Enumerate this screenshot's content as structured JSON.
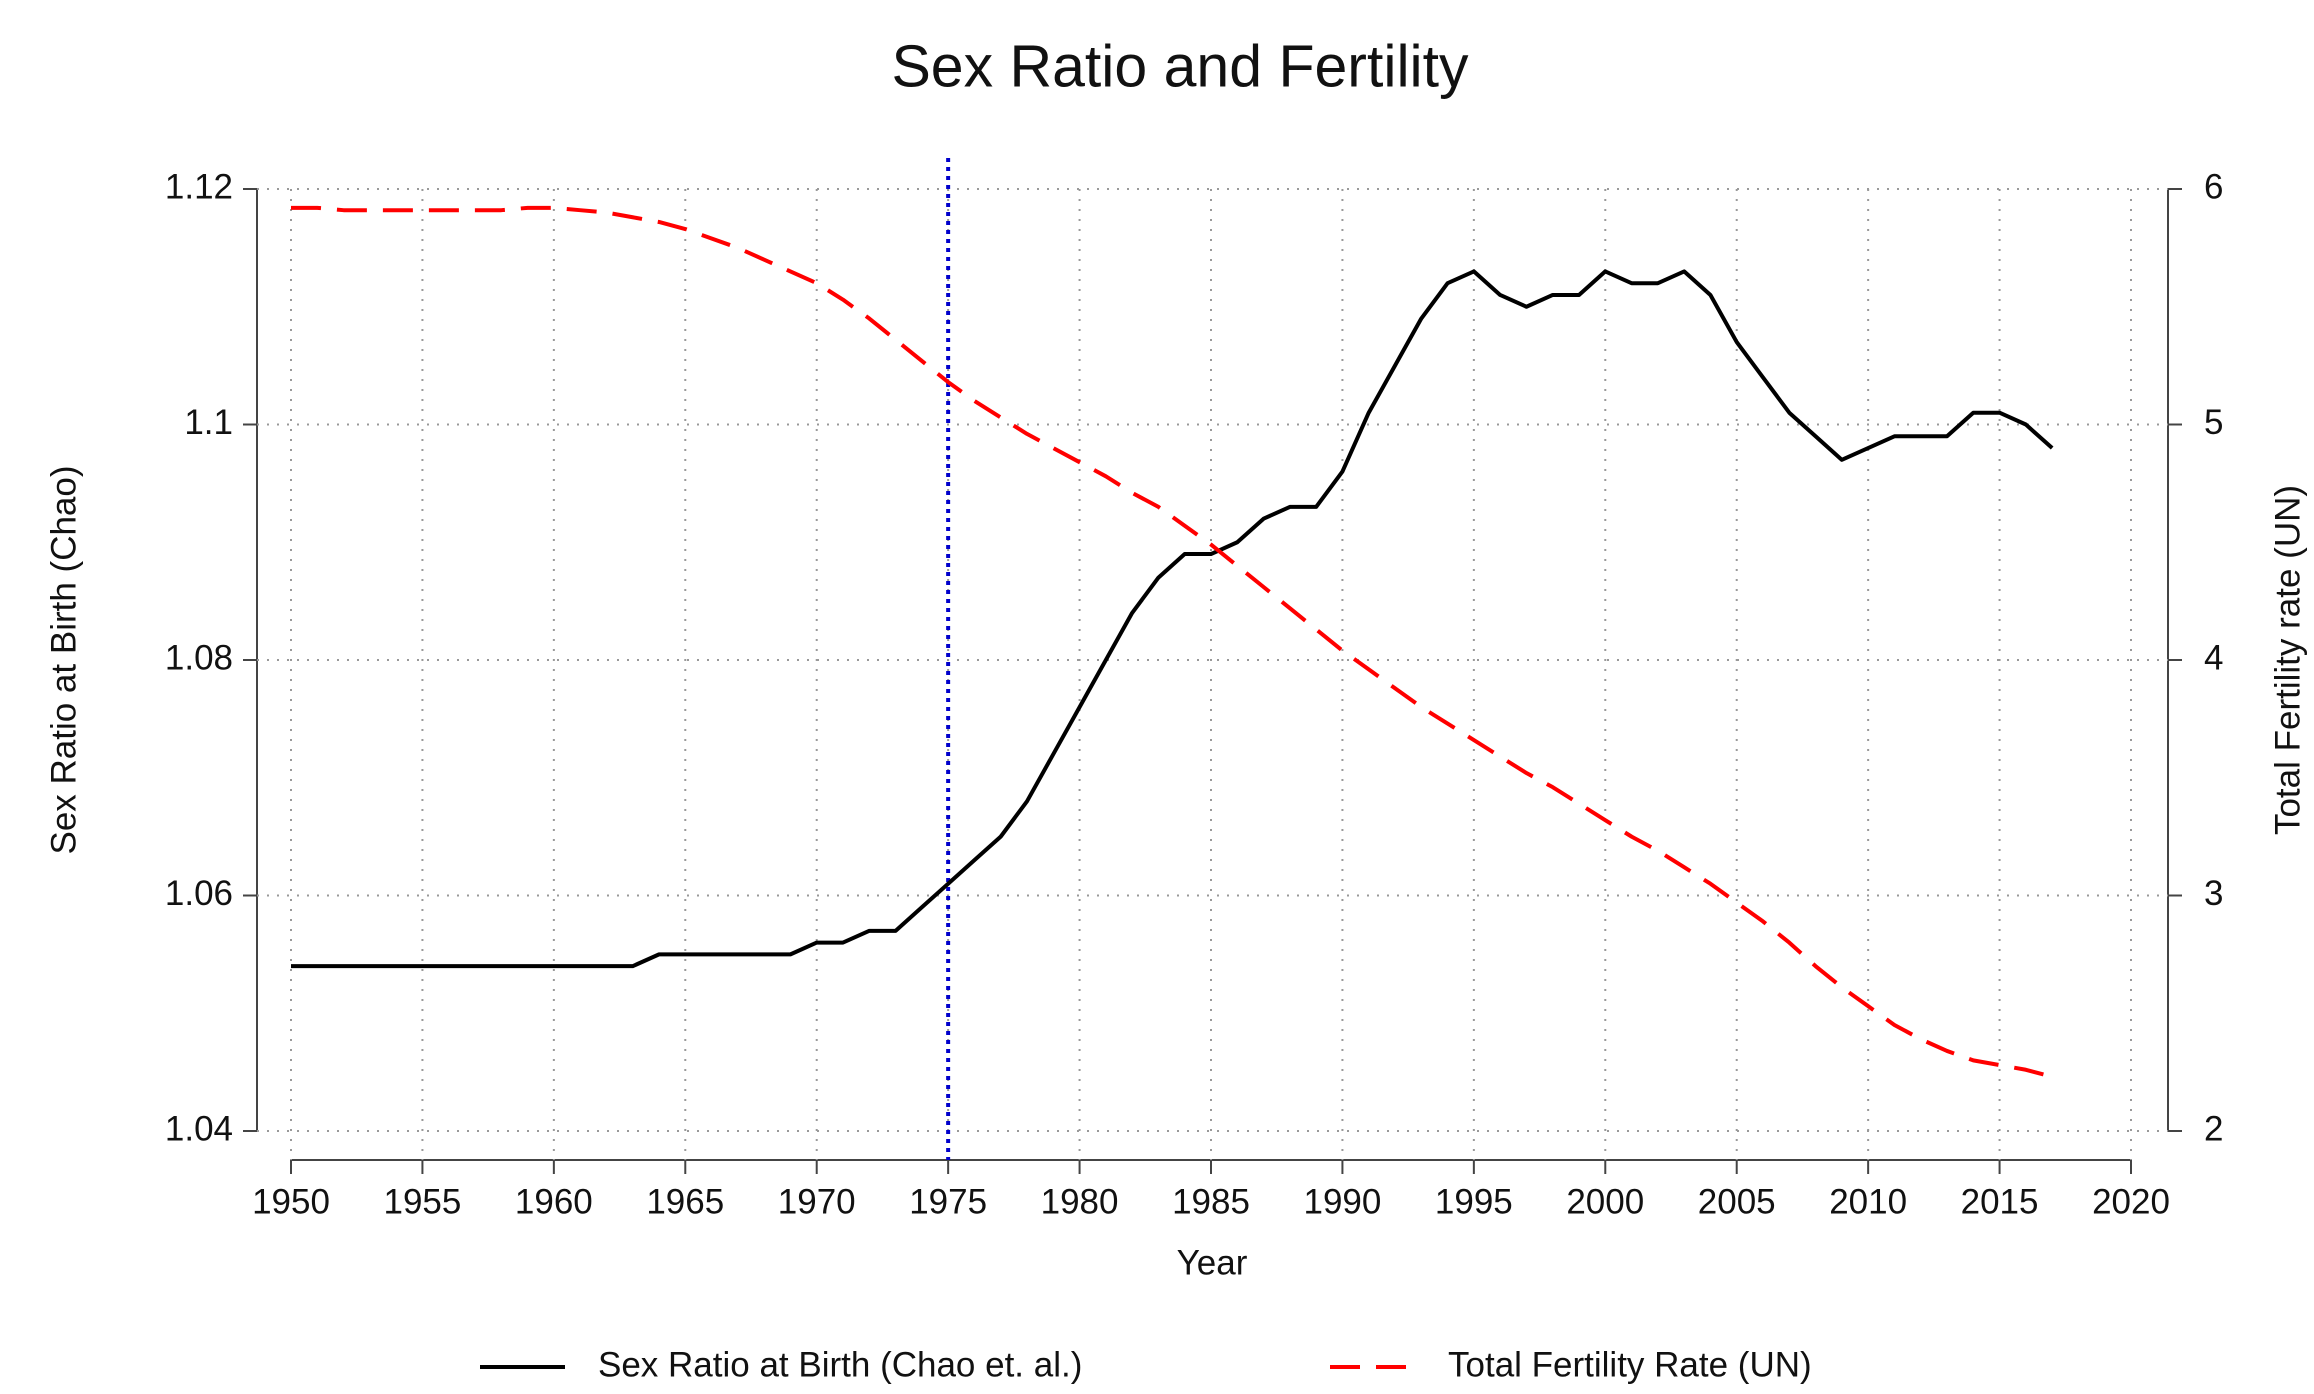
{
  "chart_data": {
    "type": "line",
    "title": "Sex Ratio and Fertility",
    "xlabel": "Year",
    "ylabel": "Sex Ratio at Birth (Chao)",
    "y2label": "Total Fertility rate (UN)",
    "x": [
      1950,
      1951,
      1952,
      1953,
      1954,
      1955,
      1956,
      1957,
      1958,
      1959,
      1960,
      1961,
      1962,
      1963,
      1964,
      1965,
      1966,
      1967,
      1968,
      1969,
      1970,
      1971,
      1972,
      1973,
      1974,
      1975,
      1976,
      1977,
      1978,
      1979,
      1980,
      1981,
      1982,
      1983,
      1984,
      1985,
      1986,
      1987,
      1988,
      1989,
      1990,
      1991,
      1992,
      1993,
      1994,
      1995,
      1996,
      1997,
      1998,
      1999,
      2000,
      2001,
      2002,
      2003,
      2004,
      2005,
      2006,
      2007,
      2008,
      2009,
      2010,
      2011,
      2012,
      2013,
      2014,
      2015,
      2016,
      2017
    ],
    "series": [
      {
        "name": "Sex Ratio at Birth (Chao et. al.)",
        "color": "#000000",
        "dash": "solid",
        "values": [
          1.054,
          1.054,
          1.054,
          1.054,
          1.054,
          1.054,
          1.054,
          1.054,
          1.054,
          1.054,
          1.054,
          1.054,
          1.054,
          1.054,
          1.055,
          1.055,
          1.055,
          1.055,
          1.055,
          1.055,
          1.056,
          1.056,
          1.057,
          1.057,
          1.059,
          1.061,
          1.063,
          1.065,
          1.068,
          1.072,
          1.076,
          1.08,
          1.084,
          1.087,
          1.089,
          1.089,
          1.09,
          1.092,
          1.093,
          1.093,
          1.096,
          1.101,
          1.105,
          1.109,
          1.112,
          1.113,
          1.111,
          1.11,
          1.111,
          1.111,
          1.113,
          1.112,
          1.112,
          1.113,
          1.111,
          1.107,
          1.104,
          1.101,
          1.099,
          1.097,
          1.098,
          1.099,
          1.099,
          1.099,
          1.101,
          1.101,
          1.1,
          1.098
        ]
      },
      {
        "name": "Total Fertility Rate (UN)",
        "color": "#ff0000",
        "dash": "dashed",
        "axis": "y2",
        "values": [
          5.92,
          5.92,
          5.91,
          5.91,
          5.91,
          5.91,
          5.91,
          5.91,
          5.91,
          5.92,
          5.92,
          5.91,
          5.9,
          5.88,
          5.86,
          5.83,
          5.79,
          5.75,
          5.7,
          5.65,
          5.6,
          5.53,
          5.45,
          5.36,
          5.27,
          5.18,
          5.1,
          5.03,
          4.96,
          4.9,
          4.84,
          4.78,
          4.71,
          4.65,
          4.57,
          4.49,
          4.4,
          4.31,
          4.22,
          4.13,
          4.04,
          3.96,
          3.88,
          3.8,
          3.73,
          3.66,
          3.59,
          3.52,
          3.46,
          3.39,
          3.32,
          3.25,
          3.19,
          3.12,
          3.05,
          2.97,
          2.89,
          2.8,
          2.7,
          2.61,
          2.53,
          2.45,
          2.39,
          2.34,
          2.3,
          2.28,
          2.26,
          2.23
        ]
      }
    ],
    "xlim": [
      1950,
      2020
    ],
    "xticks": [
      1950,
      1955,
      1960,
      1965,
      1970,
      1975,
      1980,
      1985,
      1990,
      1995,
      2000,
      2005,
      2010,
      2015,
      2020
    ],
    "ylim": [
      1.04,
      1.12
    ],
    "yticks": [
      1.04,
      1.06,
      1.08,
      1.1,
      1.12
    ],
    "y2lim": [
      2,
      6
    ],
    "y2ticks": [
      2,
      3,
      4,
      5,
      6
    ],
    "vline": {
      "x": 1975,
      "color": "#0000cc"
    },
    "grid": true,
    "legend": "bottom"
  }
}
